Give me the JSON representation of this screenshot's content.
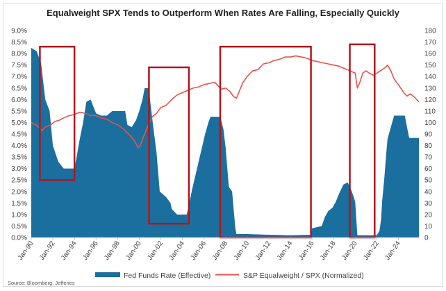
{
  "chart_data": {
    "type": "area",
    "title": "Equalweight SPX Tends to Outperform When Rates Are Falling, Especially Quickly",
    "source": "Source: Bloomberg, Jefferies",
    "x_tick_labels": [
      "Jan-90",
      "Jan-92",
      "Jan-94",
      "Jan-96",
      "Jan-98",
      "Jan-00",
      "Jan-02",
      "Jan-04",
      "Jan-06",
      "Jan-08",
      "Jan-10",
      "Jan-12",
      "Jan-14",
      "Jan-16",
      "Jan-18",
      "Jan-20",
      "Jan-22",
      "Jan-24"
    ],
    "xlim": [
      1990.0,
      2025.9
    ],
    "y_left": {
      "lim": [
        0,
        9
      ],
      "tick_labels": [
        "0.0%",
        "0.5%",
        "1.0%",
        "1.5%",
        "2.0%",
        "2.5%",
        "3.0%",
        "3.5%",
        "4.0%",
        "4.5%",
        "5.0%",
        "5.5%",
        "6.0%",
        "6.5%",
        "7.0%",
        "7.5%",
        "8.0%",
        "8.5%",
        "9.0%"
      ]
    },
    "y_right": {
      "lim": [
        0,
        180
      ],
      "tick_labels": [
        "0",
        "10",
        "20",
        "30",
        "40",
        "50",
        "60",
        "70",
        "80",
        "90",
        "100",
        "110",
        "120",
        "130",
        "140",
        "150",
        "160",
        "170",
        "180"
      ]
    },
    "grid": false,
    "legend_position": "bottom",
    "series": [
      {
        "name": "Fed Funds Rate (Effective)",
        "kind": "area",
        "axis": "left",
        "color": "#1b6f9e",
        "points": [
          [
            1990.0,
            8.25
          ],
          [
            1990.5,
            8.1
          ],
          [
            1990.9,
            7.6
          ],
          [
            1991.3,
            6.0
          ],
          [
            1991.7,
            5.5
          ],
          [
            1992.0,
            4.0
          ],
          [
            1992.5,
            3.3
          ],
          [
            1993.0,
            3.0
          ],
          [
            1993.5,
            3.0
          ],
          [
            1994.0,
            3.0
          ],
          [
            1994.2,
            3.5
          ],
          [
            1994.5,
            4.3
          ],
          [
            1994.8,
            5.0
          ],
          [
            1995.1,
            5.9
          ],
          [
            1995.5,
            6.0
          ],
          [
            1996.0,
            5.4
          ],
          [
            1996.5,
            5.3
          ],
          [
            1997.0,
            5.3
          ],
          [
            1997.5,
            5.5
          ],
          [
            1998.0,
            5.5
          ],
          [
            1998.7,
            5.5
          ],
          [
            1998.9,
            4.9
          ],
          [
            1999.3,
            4.8
          ],
          [
            1999.7,
            5.1
          ],
          [
            2000.0,
            5.5
          ],
          [
            2000.3,
            6.0
          ],
          [
            2000.5,
            6.5
          ],
          [
            2000.9,
            6.5
          ],
          [
            2001.0,
            6.0
          ],
          [
            2001.3,
            4.8
          ],
          [
            2001.6,
            3.7
          ],
          [
            2001.9,
            2.0
          ],
          [
            2002.5,
            1.75
          ],
          [
            2002.9,
            1.5
          ],
          [
            2003.0,
            1.25
          ],
          [
            2003.5,
            1.0
          ],
          [
            2004.4,
            1.0
          ],
          [
            2004.6,
            1.4
          ],
          [
            2004.9,
            2.1
          ],
          [
            2005.2,
            2.7
          ],
          [
            2005.5,
            3.3
          ],
          [
            2005.8,
            3.9
          ],
          [
            2006.1,
            4.5
          ],
          [
            2006.4,
            5.0
          ],
          [
            2006.6,
            5.25
          ],
          [
            2007.5,
            5.25
          ],
          [
            2007.8,
            4.7
          ],
          [
            2008.0,
            3.9
          ],
          [
            2008.3,
            2.2
          ],
          [
            2008.6,
            2.0
          ],
          [
            2008.9,
            0.4
          ],
          [
            2009.0,
            0.15
          ],
          [
            2010.0,
            0.15
          ],
          [
            2012.0,
            0.12
          ],
          [
            2014.0,
            0.1
          ],
          [
            2015.9,
            0.12
          ],
          [
            2016.0,
            0.4
          ],
          [
            2016.9,
            0.5
          ],
          [
            2017.2,
            0.9
          ],
          [
            2017.5,
            1.15
          ],
          [
            2017.9,
            1.3
          ],
          [
            2018.2,
            1.55
          ],
          [
            2018.5,
            1.9
          ],
          [
            2018.9,
            2.3
          ],
          [
            2019.3,
            2.4
          ],
          [
            2019.6,
            2.1
          ],
          [
            2019.8,
            1.85
          ],
          [
            2020.0,
            1.55
          ],
          [
            2020.2,
            0.1
          ],
          [
            2022.0,
            0.1
          ],
          [
            2022.25,
            0.3
          ],
          [
            2022.4,
            0.8
          ],
          [
            2022.5,
            1.6
          ],
          [
            2022.7,
            2.6
          ],
          [
            2022.9,
            3.8
          ],
          [
            2023.0,
            4.3
          ],
          [
            2023.3,
            4.8
          ],
          [
            2023.6,
            5.3
          ],
          [
            2024.6,
            5.3
          ],
          [
            2024.8,
            4.8
          ],
          [
            2025.0,
            4.33
          ],
          [
            2025.9,
            4.33
          ]
        ]
      },
      {
        "name": "S&P Equalweight / SPX (Normalized)",
        "kind": "line",
        "axis": "right",
        "color": "#e8524a",
        "points": [
          [
            1990.0,
            100
          ],
          [
            1990.6,
            97
          ],
          [
            1991.0,
            93
          ],
          [
            1991.3,
            96
          ],
          [
            1991.8,
            98
          ],
          [
            1992.2,
            101
          ],
          [
            1992.6,
            102
          ],
          [
            1993.0,
            104
          ],
          [
            1993.5,
            106
          ],
          [
            1994.0,
            107
          ],
          [
            1994.5,
            109
          ],
          [
            1995.0,
            108
          ],
          [
            1995.5,
            106
          ],
          [
            1996.0,
            106
          ],
          [
            1996.5,
            104
          ],
          [
            1997.0,
            103
          ],
          [
            1997.5,
            100
          ],
          [
            1998.0,
            98
          ],
          [
            1998.6,
            94
          ],
          [
            1999.0,
            90
          ],
          [
            1999.5,
            85
          ],
          [
            1999.9,
            78
          ],
          [
            2000.1,
            80
          ],
          [
            2000.4,
            88
          ],
          [
            2000.8,
            97
          ],
          [
            2001.2,
            105
          ],
          [
            2001.6,
            108
          ],
          [
            2002.0,
            113
          ],
          [
            2002.5,
            115
          ],
          [
            2003.0,
            120
          ],
          [
            2003.5,
            124
          ],
          [
            2004.0,
            126
          ],
          [
            2004.5,
            128
          ],
          [
            2005.0,
            130
          ],
          [
            2005.5,
            131
          ],
          [
            2006.0,
            133
          ],
          [
            2006.5,
            134
          ],
          [
            2007.0,
            135
          ],
          [
            2007.3,
            132
          ],
          [
            2007.6,
            129
          ],
          [
            2008.0,
            130
          ],
          [
            2008.4,
            127
          ],
          [
            2008.7,
            123
          ],
          [
            2009.0,
            121
          ],
          [
            2009.3,
            128
          ],
          [
            2009.6,
            135
          ],
          [
            2010.0,
            140
          ],
          [
            2010.5,
            145
          ],
          [
            2011.0,
            146
          ],
          [
            2011.5,
            151
          ],
          [
            2012.0,
            152
          ],
          [
            2012.5,
            154
          ],
          [
            2013.0,
            155
          ],
          [
            2013.5,
            157
          ],
          [
            2014.0,
            157
          ],
          [
            2014.5,
            158
          ],
          [
            2015.0,
            157
          ],
          [
            2015.5,
            156
          ],
          [
            2016.0,
            154
          ],
          [
            2016.5,
            153
          ],
          [
            2017.0,
            152
          ],
          [
            2017.5,
            151
          ],
          [
            2018.0,
            150
          ],
          [
            2018.5,
            149
          ],
          [
            2019.0,
            147
          ],
          [
            2019.5,
            145
          ],
          [
            2020.0,
            143
          ],
          [
            2020.2,
            130
          ],
          [
            2020.4,
            134
          ],
          [
            2020.7,
            143
          ],
          [
            2021.0,
            145
          ],
          [
            2021.3,
            143
          ],
          [
            2021.7,
            141
          ],
          [
            2022.0,
            143
          ],
          [
            2022.5,
            146
          ],
          [
            2022.8,
            148
          ],
          [
            2023.0,
            150
          ],
          [
            2023.3,
            145
          ],
          [
            2023.6,
            138
          ],
          [
            2024.0,
            133
          ],
          [
            2024.5,
            126
          ],
          [
            2024.8,
            123
          ],
          [
            2025.1,
            125
          ],
          [
            2025.5,
            122
          ],
          [
            2025.9,
            118
          ]
        ]
      }
    ],
    "highlight_boxes": [
      {
        "x_start": 1990.8,
        "x_end": 1994.0,
        "y_low": 2.5,
        "y_high": 8.3
      },
      {
        "x_start": 2000.9,
        "x_end": 2004.6,
        "y_low": 0.6,
        "y_high": 7.4
      },
      {
        "x_start": 2007.5,
        "x_end": 2015.9,
        "y_low": 0.0,
        "y_high": 8.3
      },
      {
        "x_start": 2019.5,
        "x_end": 2021.8,
        "y_low": 0.0,
        "y_high": 8.4
      }
    ]
  }
}
